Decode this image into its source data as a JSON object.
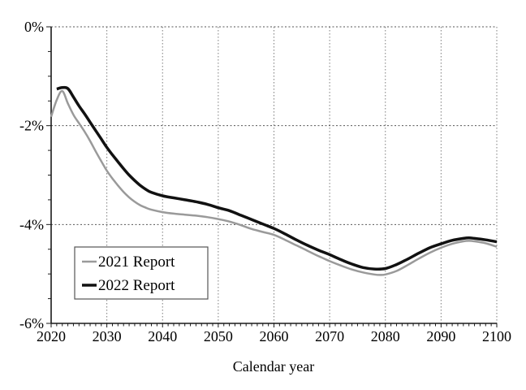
{
  "figure": {
    "background": "#ffffff"
  },
  "chart_data": {
    "type": "line",
    "title": "",
    "xlabel": "Calendar year",
    "ylabel": "",
    "grid": "dotted gridlines at major ticks, on",
    "x_axis": {
      "min": 2020,
      "max": 2100,
      "major_tick_step": 10,
      "minor_tick_step": 1,
      "tick_labels": [
        "2020",
        "2030",
        "2040",
        "2050",
        "2060",
        "2070",
        "2080",
        "2090",
        "2100"
      ]
    },
    "y_axis": {
      "min": -6,
      "max": 0,
      "major_tick_step": 2,
      "minor_tick_step": 0.5,
      "tick_labels": [
        "0%",
        "-2%",
        "-4%",
        "-6%"
      ]
    },
    "legend": {
      "position": "inside-lower-left",
      "entries": [
        {
          "label": "2021 Report",
          "color": "#9a9a9a",
          "line_width": 2.5
        },
        {
          "label": "2022 Report",
          "color": "#111111",
          "line_width": 3.5
        }
      ]
    },
    "series": [
      {
        "name": "2021 Report",
        "color": "#9a9a9a",
        "width": 2.5,
        "points": [
          [
            2020,
            -1.82
          ],
          [
            2021,
            -1.48
          ],
          [
            2022,
            -1.3
          ],
          [
            2023,
            -1.55
          ],
          [
            2024,
            -1.78
          ],
          [
            2025,
            -1.95
          ],
          [
            2026,
            -2.12
          ],
          [
            2027,
            -2.31
          ],
          [
            2028,
            -2.52
          ],
          [
            2029,
            -2.72
          ],
          [
            2030,
            -2.91
          ],
          [
            2031,
            -3.07
          ],
          [
            2032,
            -3.21
          ],
          [
            2033,
            -3.34
          ],
          [
            2034,
            -3.45
          ],
          [
            2035,
            -3.54
          ],
          [
            2036,
            -3.61
          ],
          [
            2037,
            -3.66
          ],
          [
            2038,
            -3.7
          ],
          [
            2040,
            -3.75
          ],
          [
            2042,
            -3.78
          ],
          [
            2044,
            -3.8
          ],
          [
            2046,
            -3.82
          ],
          [
            2048,
            -3.85
          ],
          [
            2050,
            -3.89
          ],
          [
            2052,
            -3.94
          ],
          [
            2054,
            -4.01
          ],
          [
            2056,
            -4.09
          ],
          [
            2058,
            -4.15
          ],
          [
            2060,
            -4.21
          ],
          [
            2062,
            -4.31
          ],
          [
            2064,
            -4.42
          ],
          [
            2066,
            -4.53
          ],
          [
            2068,
            -4.64
          ],
          [
            2070,
            -4.74
          ],
          [
            2072,
            -4.83
          ],
          [
            2074,
            -4.91
          ],
          [
            2076,
            -4.97
          ],
          [
            2078,
            -5.01
          ],
          [
            2079,
            -5.02
          ],
          [
            2080,
            -5.01
          ],
          [
            2082,
            -4.94
          ],
          [
            2084,
            -4.82
          ],
          [
            2086,
            -4.69
          ],
          [
            2088,
            -4.57
          ],
          [
            2090,
            -4.47
          ],
          [
            2092,
            -4.39
          ],
          [
            2094,
            -4.34
          ],
          [
            2095,
            -4.33
          ],
          [
            2096,
            -4.34
          ],
          [
            2098,
            -4.38
          ],
          [
            2100,
            -4.45
          ]
        ]
      },
      {
        "name": "2022 Report",
        "color": "#111111",
        "width": 3.5,
        "points": [
          [
            2021,
            -1.26
          ],
          [
            2022,
            -1.23
          ],
          [
            2023,
            -1.25
          ],
          [
            2024,
            -1.42
          ],
          [
            2025,
            -1.6
          ],
          [
            2026,
            -1.76
          ],
          [
            2027,
            -1.93
          ],
          [
            2028,
            -2.1
          ],
          [
            2029,
            -2.27
          ],
          [
            2030,
            -2.44
          ],
          [
            2031,
            -2.59
          ],
          [
            2032,
            -2.73
          ],
          [
            2033,
            -2.87
          ],
          [
            2034,
            -3.0
          ],
          [
            2035,
            -3.11
          ],
          [
            2036,
            -3.21
          ],
          [
            2037,
            -3.29
          ],
          [
            2038,
            -3.35
          ],
          [
            2040,
            -3.42
          ],
          [
            2042,
            -3.46
          ],
          [
            2044,
            -3.5
          ],
          [
            2046,
            -3.54
          ],
          [
            2048,
            -3.59
          ],
          [
            2050,
            -3.66
          ],
          [
            2052,
            -3.72
          ],
          [
            2054,
            -3.81
          ],
          [
            2056,
            -3.9
          ],
          [
            2058,
            -3.99
          ],
          [
            2060,
            -4.08
          ],
          [
            2062,
            -4.19
          ],
          [
            2064,
            -4.31
          ],
          [
            2066,
            -4.42
          ],
          [
            2068,
            -4.52
          ],
          [
            2070,
            -4.61
          ],
          [
            2072,
            -4.71
          ],
          [
            2074,
            -4.8
          ],
          [
            2076,
            -4.87
          ],
          [
            2078,
            -4.9
          ],
          [
            2080,
            -4.89
          ],
          [
            2082,
            -4.81
          ],
          [
            2084,
            -4.7
          ],
          [
            2086,
            -4.58
          ],
          [
            2088,
            -4.47
          ],
          [
            2090,
            -4.39
          ],
          [
            2092,
            -4.32
          ],
          [
            2094,
            -4.28
          ],
          [
            2095,
            -4.27
          ],
          [
            2096,
            -4.28
          ],
          [
            2098,
            -4.31
          ],
          [
            2100,
            -4.35
          ]
        ]
      }
    ]
  }
}
